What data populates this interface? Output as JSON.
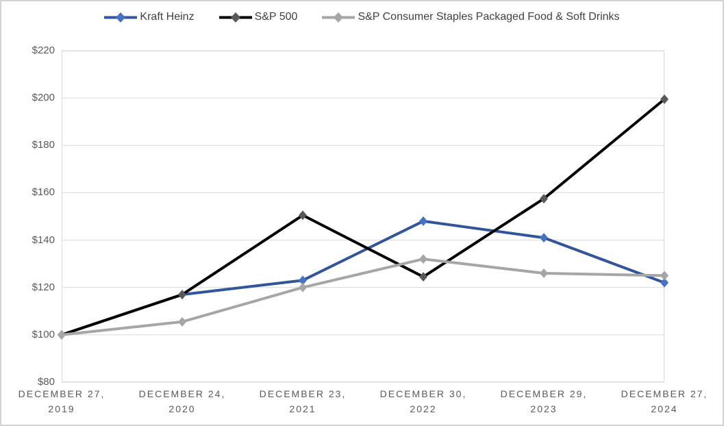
{
  "chart_data": {
    "type": "line",
    "title": "",
    "xlabel": "",
    "ylabel": "",
    "categories": [
      "DECEMBER 27, 2019",
      "DECEMBER 24, 2020",
      "DECEMBER 23, 2021",
      "DECEMBER 30, 2022",
      "DECEMBER 29, 2023",
      "DECEMBER 27, 2024"
    ],
    "category_lines": [
      [
        "DECEMBER 27,",
        "2019"
      ],
      [
        "DECEMBER 24,",
        "2020"
      ],
      [
        "DECEMBER 23,",
        "2021"
      ],
      [
        "DECEMBER 30,",
        "2022"
      ],
      [
        "DECEMBER 29,",
        "2023"
      ],
      [
        "DECEMBER 27,",
        "2024"
      ]
    ],
    "series": [
      {
        "name": "Kraft Heinz",
        "values": [
          100,
          117,
          123,
          148,
          141,
          122
        ],
        "line_color": "#31549B",
        "marker_color": "#4472C4"
      },
      {
        "name": "S&P 500",
        "values": [
          100,
          117,
          150.5,
          124.5,
          157.5,
          199.5
        ],
        "line_color": "#000000",
        "marker_color": "#595959"
      },
      {
        "name": "S&P Consumer Staples Packaged Food & Soft Drinks",
        "values": [
          100,
          105.5,
          120,
          132,
          126,
          125
        ],
        "line_color": "#A6A6A6",
        "marker_color": "#A6A6A6"
      }
    ],
    "ylim": [
      80,
      220
    ],
    "ytick_step": 20,
    "ytick_labels": [
      "$220",
      "$200",
      "$180",
      "$160",
      "$140",
      "$120",
      "$100",
      "$80"
    ],
    "grid": "horizontal gridlines on, vertical off",
    "legend_position": "top",
    "colors": {
      "gridline": "#D9D9D9",
      "plot_border": "#D9D9D9",
      "axis_text": "#595959",
      "legend_text": "#404040",
      "outer_border": "#D3D3D3",
      "background": "#FFFFFF"
    }
  }
}
